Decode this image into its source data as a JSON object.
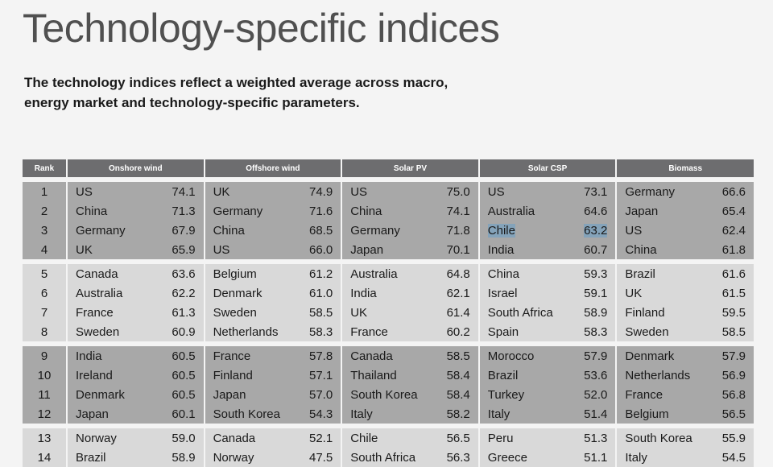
{
  "title": "Technology-specific indices",
  "subtitle_lines": [
    "The technology indices reflect a weighted average across macro,",
    "energy market and technology-specific parameters."
  ],
  "columns": [
    "Rank",
    "Onshore wind",
    "Offshore wind",
    "Solar PV",
    "Solar CSP",
    "Biomass"
  ],
  "rows": [
    {
      "rank": "1",
      "cells": [
        [
          "US",
          "74.1"
        ],
        [
          "UK",
          "74.9"
        ],
        [
          "US",
          "75.0"
        ],
        [
          "US",
          "73.1"
        ],
        [
          "Germany",
          "66.6"
        ]
      ]
    },
    {
      "rank": "2",
      "cells": [
        [
          "China",
          "71.3"
        ],
        [
          "Germany",
          "71.6"
        ],
        [
          "China",
          "74.1"
        ],
        [
          "Australia",
          "64.6"
        ],
        [
          "Japan",
          "65.4"
        ]
      ]
    },
    {
      "rank": "3",
      "cells": [
        [
          "Germany",
          "67.9"
        ],
        [
          "China",
          "68.5"
        ],
        [
          "Germany",
          "71.8"
        ],
        [
          "Chile",
          "63.2"
        ],
        [
          "US",
          "62.4"
        ]
      ]
    },
    {
      "rank": "4",
      "cells": [
        [
          "UK",
          "65.9"
        ],
        [
          "US",
          "66.0"
        ],
        [
          "Japan",
          "70.1"
        ],
        [
          "India",
          "60.7"
        ],
        [
          "China",
          "61.8"
        ]
      ]
    },
    {
      "rank": "5",
      "cells": [
        [
          "Canada",
          "63.6"
        ],
        [
          "Belgium",
          "61.2"
        ],
        [
          "Australia",
          "64.8"
        ],
        [
          "China",
          "59.3"
        ],
        [
          "Brazil",
          "61.6"
        ]
      ]
    },
    {
      "rank": "6",
      "cells": [
        [
          "Australia",
          "62.2"
        ],
        [
          "Denmark",
          "61.0"
        ],
        [
          "India",
          "62.1"
        ],
        [
          "Israel",
          "59.1"
        ],
        [
          "UK",
          "61.5"
        ]
      ]
    },
    {
      "rank": "7",
      "cells": [
        [
          "France",
          "61.3"
        ],
        [
          "Sweden",
          "58.5"
        ],
        [
          "UK",
          "61.4"
        ],
        [
          "South Africa",
          "58.9"
        ],
        [
          "Finland",
          "59.5"
        ]
      ]
    },
    {
      "rank": "8",
      "cells": [
        [
          "Sweden",
          "60.9"
        ],
        [
          "Netherlands",
          "58.3"
        ],
        [
          "France",
          "60.2"
        ],
        [
          "Spain",
          "58.3"
        ],
        [
          "Sweden",
          "58.5"
        ]
      ]
    },
    {
      "rank": "9",
      "cells": [
        [
          "India",
          "60.5"
        ],
        [
          "France",
          "57.8"
        ],
        [
          "Canada",
          "58.5"
        ],
        [
          "Morocco",
          "57.9"
        ],
        [
          "Denmark",
          "57.9"
        ]
      ]
    },
    {
      "rank": "10",
      "cells": [
        [
          "Ireland",
          "60.5"
        ],
        [
          "Finland",
          "57.1"
        ],
        [
          "Thailand",
          "58.4"
        ],
        [
          "Brazil",
          "53.6"
        ],
        [
          "Netherlands",
          "56.9"
        ]
      ]
    },
    {
      "rank": "11",
      "cells": [
        [
          "Denmark",
          "60.5"
        ],
        [
          "Japan",
          "57.0"
        ],
        [
          "South Korea",
          "58.4"
        ],
        [
          "Turkey",
          "52.0"
        ],
        [
          "France",
          "56.8"
        ]
      ]
    },
    {
      "rank": "12",
      "cells": [
        [
          "Japan",
          "60.1"
        ],
        [
          "South Korea",
          "54.3"
        ],
        [
          "Italy",
          "58.2"
        ],
        [
          "Italy",
          "51.4"
        ],
        [
          "Belgium",
          "56.5"
        ]
      ]
    },
    {
      "rank": "13",
      "cells": [
        [
          "Norway",
          "59.0"
        ],
        [
          "Canada",
          "52.1"
        ],
        [
          "Chile",
          "56.5"
        ],
        [
          "Peru",
          "51.3"
        ],
        [
          "South Korea",
          "55.9"
        ]
      ]
    },
    {
      "rank": "14",
      "cells": [
        [
          "Brazil",
          "58.9"
        ],
        [
          "Norway",
          "47.5"
        ],
        [
          "South Africa",
          "56.3"
        ],
        [
          "Greece",
          "51.1"
        ],
        [
          "Italy",
          "54.5"
        ]
      ]
    }
  ],
  "selected_text": [
    "Chile",
    "63.2"
  ],
  "colors": {
    "header_bg": "#6d6d6f",
    "band_dark": "#a8a8a8",
    "band_light": "#d9d9d9",
    "selection": "#84a3ba",
    "title": "#505050"
  }
}
